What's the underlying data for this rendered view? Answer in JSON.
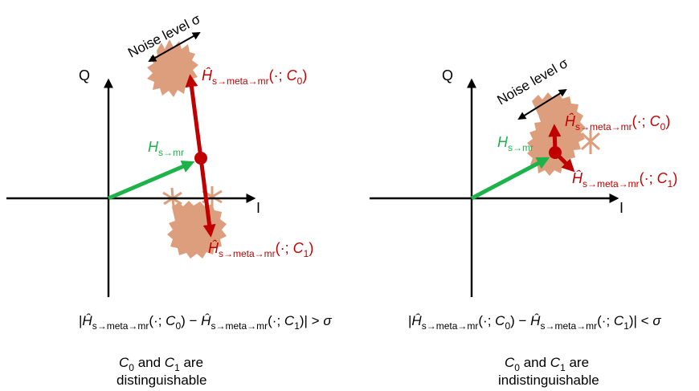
{
  "colors": {
    "cloud": "#dc9e7c",
    "red": "#c00000",
    "green": "#1db24a",
    "axis": "#000000"
  },
  "left": {
    "axis_q": "Q",
    "axis_i": "I",
    "noise_label": "Noise level σ",
    "h_label": "H",
    "h_sub": "s→mr",
    "hat_label": "Ĥ",
    "hat_sub": "s→meta→mr",
    "c0_open": "(·; ",
    "c0_c": "C",
    "c0_sub": "0",
    "c0_close": ")",
    "c1_open": "(·; ",
    "c1_c": "C",
    "c1_sub": "1",
    "c1_close": ")",
    "equation": {
      "bar_open": "|",
      "hat": "Ĥ",
      "sub": "s→meta→mr",
      "arg0": "(·; ",
      "c": "C",
      "c0": "0",
      "close0": ") − ",
      "arg1": "(·; ",
      "c1": "1",
      "close1": ")| > ",
      "sigma": "σ"
    },
    "caption": {
      "c0": "C",
      "c0_sub": "0",
      "and": " and ",
      "c1": "C",
      "c1_sub": "1",
      "are": " are",
      "line2": "distinguishable"
    }
  },
  "right": {
    "axis_q": "Q",
    "axis_i": "I",
    "noise_label": "Noise level σ",
    "h_label": "H",
    "h_sub": "s→mr",
    "hat_label": "Ĥ",
    "hat_sub": "s→meta→mr",
    "c0_open": "(·; ",
    "c0_c": "C",
    "c0_sub": "0",
    "c0_close": ")",
    "c1_open": "(·; ",
    "c1_c": "C",
    "c1_sub": "1",
    "c1_close": ")",
    "equation": {
      "bar_open": "|",
      "hat": "Ĥ",
      "sub": "s→meta→mr",
      "arg0": "(·; ",
      "c": "C",
      "c0": "0",
      "close0": ") − ",
      "arg1": "(·; ",
      "c1": "1",
      "close1": ")| < ",
      "sigma": "σ"
    },
    "caption": {
      "c0": "C",
      "c0_sub": "0",
      "and": " and ",
      "c1": "C",
      "c1_sub": "1",
      "are": " are",
      "line2": "indistinguishable"
    }
  }
}
